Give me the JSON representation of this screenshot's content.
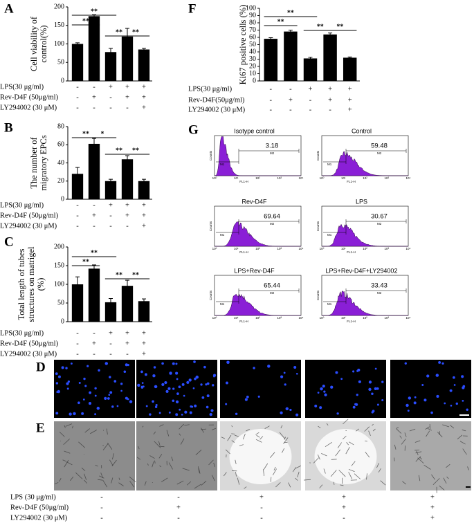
{
  "chart_data": [
    {
      "type": "bar",
      "panel": "A",
      "ylabel": [
        "Cell viability of",
        "control(%)"
      ],
      "values": [
        100,
        175,
        78,
        120,
        85
      ],
      "errors": [
        3,
        4,
        10,
        22,
        3
      ],
      "color": "#000000",
      "ylim": [
        0,
        200
      ],
      "yticks": [
        0,
        50,
        100,
        150,
        200
      ],
      "significance": [
        "**",
        "**",
        "**",
        "**"
      ],
      "treatments": [
        {
          "label": "LPS(30 μg/ml)",
          "marks": [
            "-",
            "-",
            "+",
            "+",
            "+"
          ]
        },
        {
          "label": "Rev-D4F (50μg/ml)",
          "marks": [
            "-",
            "+",
            "-",
            "+",
            "+"
          ]
        },
        {
          "label": "LY294002  (30 μM)",
          "marks": [
            "-",
            "-",
            "-",
            "-",
            "+"
          ]
        }
      ]
    },
    {
      "type": "bar",
      "panel": "B",
      "ylabel": [
        "The number of",
        "migratory EPCs"
      ],
      "values": [
        28,
        61,
        20,
        44,
        20
      ],
      "errors": [
        7,
        6,
        2,
        4,
        2
      ],
      "color": "#000000",
      "ylim": [
        0,
        80
      ],
      "yticks": [
        0,
        20,
        40,
        60,
        80
      ],
      "significance": [
        "**",
        "*",
        "**",
        "**"
      ],
      "treatments": [
        {
          "label": "LPS(30 μg/ml)",
          "marks": [
            "-",
            "-",
            "+",
            "+",
            "+"
          ]
        },
        {
          "label": "Rev-D4F (50μg/ml)",
          "marks": [
            "-",
            "+",
            "-",
            "+",
            "+"
          ]
        },
        {
          "label": "LY294002  (30 μM)",
          "marks": [
            "-",
            "-",
            "-",
            "-",
            "+"
          ]
        }
      ]
    },
    {
      "type": "bar",
      "panel": "C",
      "ylabel": [
        "Total length of tubes",
        "structures on matrigel",
        "(%)"
      ],
      "values": [
        100,
        142,
        52,
        96,
        55
      ],
      "errors": [
        20,
        10,
        10,
        15,
        6
      ],
      "color": "#000000",
      "ylim": [
        0,
        200
      ],
      "yticks": [
        0,
        50,
        100,
        150,
        200
      ],
      "significance": [
        "**",
        "**",
        "**",
        "**"
      ],
      "treatments": [
        {
          "label": "LPS(30 μg/ml)",
          "marks": [
            "-",
            "-",
            "+",
            "+",
            "+"
          ]
        },
        {
          "label": "Rev-D4F (50μg/ml)",
          "marks": [
            "-",
            "+",
            "-",
            "+",
            "+"
          ]
        },
        {
          "label": "LY294002  (30 μM)",
          "marks": [
            "-",
            "-",
            "-",
            "-",
            "+"
          ]
        }
      ]
    },
    {
      "type": "bar",
      "panel": "F",
      "ylabel": [
        "Ki67 positive cells (%)"
      ],
      "values": [
        58,
        68,
        31,
        64,
        32
      ],
      "errors": [
        1.5,
        2,
        1.5,
        2,
        1
      ],
      "color": "#000000",
      "ylim": [
        0,
        100
      ],
      "yticks": [
        0,
        10,
        20,
        30,
        40,
        50,
        60,
        70,
        80,
        90,
        100
      ],
      "significance": [
        "**",
        "**",
        "**",
        "**"
      ],
      "treatments": [
        {
          "label": "LPS(30 μg/ml)",
          "marks": [
            "-",
            "-",
            "+",
            "+",
            "+"
          ]
        },
        {
          "label": "Rev-D4F(50μg/ml)",
          "marks": [
            "-",
            "+",
            "-",
            "+",
            "+"
          ]
        },
        {
          "label": "LY294002  (30 μM)",
          "marks": [
            "-",
            "-",
            "-",
            "-",
            "+"
          ]
        }
      ]
    }
  ],
  "flow": {
    "panel": "G",
    "xlabel": "FL1-H",
    "ylabel": "Counts",
    "gates": [
      "M1",
      "M2"
    ],
    "x_tick_labels": [
      "10⁰",
      "10¹",
      "10²",
      "10³",
      "10⁴"
    ],
    "plots": [
      {
        "title": "Isotype control",
        "value": 3.18
      },
      {
        "title": "Control",
        "value": 59.48
      },
      {
        "title": "Rev-D4F",
        "value": 69.64
      },
      {
        "title": "LPS",
        "value": 30.67
      },
      {
        "title": "LPS+Rev-D4F",
        "value": 65.44
      },
      {
        "title": "LPS+Rev-D4F+LY294002",
        "value": 33.43
      }
    ]
  },
  "images": {
    "panels": [
      "D",
      "E"
    ],
    "treatments": [
      {
        "label": "LPS         (30 μg/ml)",
        "marks": [
          "-",
          "-",
          "+",
          "+",
          "+"
        ]
      },
      {
        "label": "Rev-D4F (50μg/ml)",
        "marks": [
          "-",
          "+",
          "-",
          "+",
          "+"
        ]
      },
      {
        "label": "LY294002 (30 μM)",
        "marks": [
          "-",
          "-",
          "-",
          "-",
          "+"
        ]
      }
    ]
  }
}
